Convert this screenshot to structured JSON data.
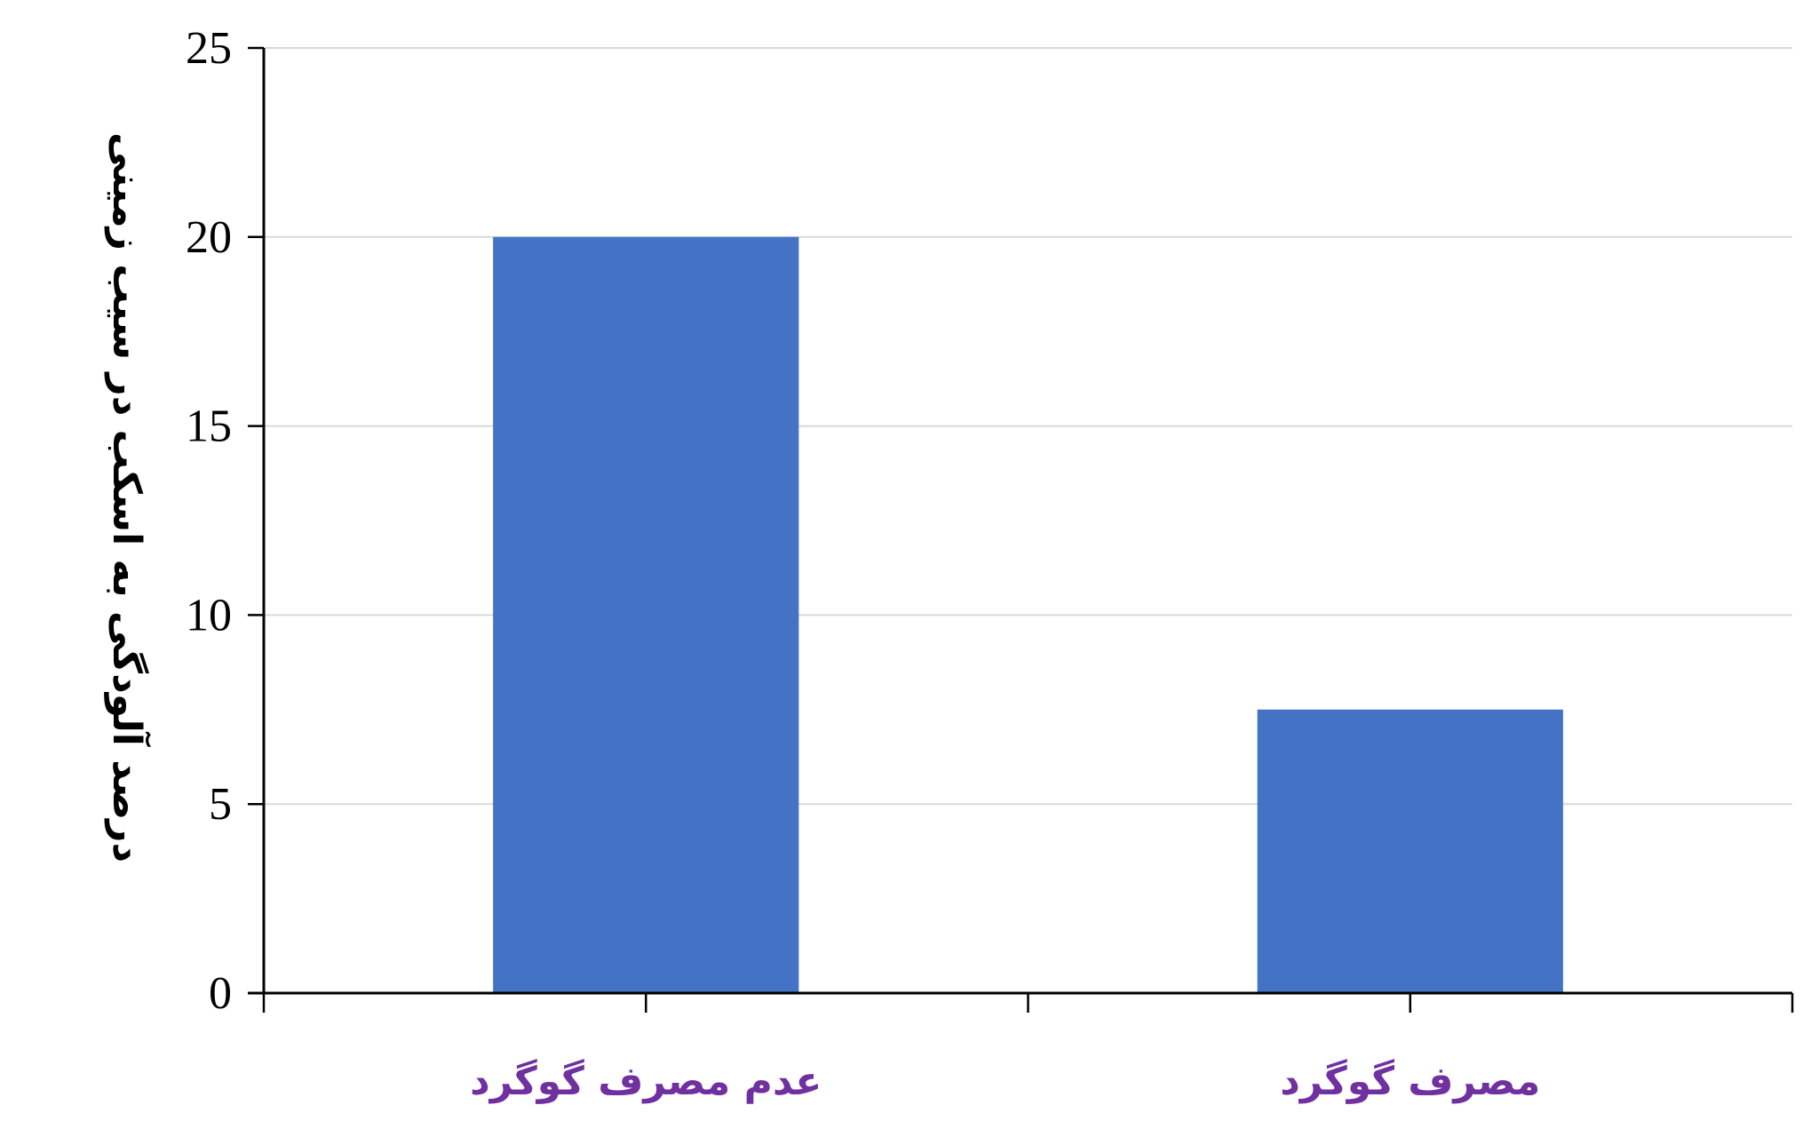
{
  "chart_data": {
    "type": "bar",
    "title": "",
    "xlabel": "",
    "ylabel": "درصد آلودگی به اسکب در سیب زمینی",
    "categories": [
      "عدم مصرف گوگرد",
      "مصرف گوگرد"
    ],
    "values": [
      20,
      7.5
    ],
    "ylim": [
      0,
      25
    ],
    "yticks": [
      0,
      5,
      10,
      15,
      20,
      25
    ],
    "grid": true,
    "legend": "none",
    "colors": {
      "bar": "#4472C4",
      "grid": "#D9D9D9",
      "axis": "#000000",
      "category_label": "#7030A0"
    }
  }
}
